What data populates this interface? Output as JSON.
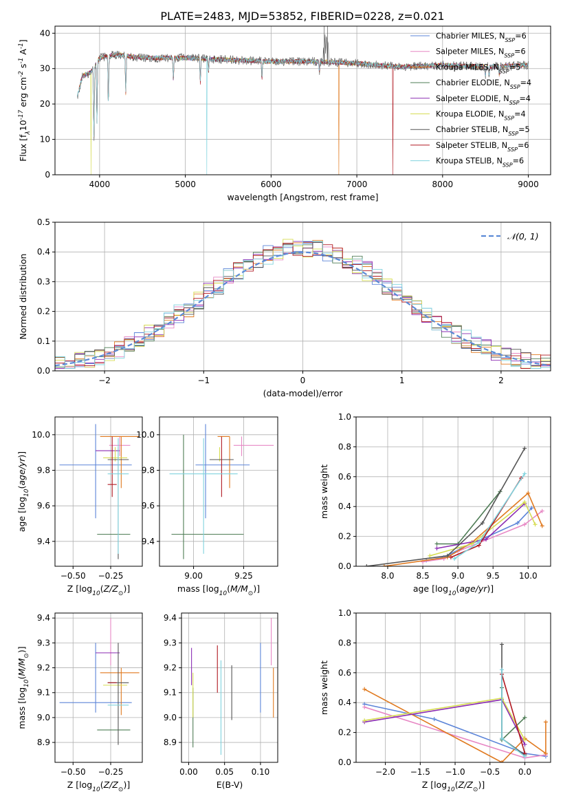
{
  "figure_title": "PLATE=2483, MJD=53852, FIBERID=0228, z=0.021",
  "colors": {
    "Chabrier MILES": "#5b84d8",
    "Salpeter MILES": "#e787c4",
    "Kroupa MILES": "#e0791e",
    "Chabrier ELODIE": "#4e7c55",
    "Salpeter ELODIE": "#8a2bb2",
    "Kroupa ELODIE": "#d6dc52",
    "Chabrier STELIB": "#555555",
    "Salpeter STELIB": "#b01820",
    "Kroupa STELIB": "#7fd3de"
  },
  "chart_data": [
    {
      "id": "spectrum",
      "type": "line",
      "xlabel": "wavelength [Angstrom, rest frame]",
      "ylabel": "Flux [f$_\\lambda$10$^{-17}$ erg cm$^{-2}$ s$^{-1}$ A$^{-1}$]",
      "xlim": [
        3480,
        9260
      ],
      "ylim": [
        0,
        42
      ],
      "xticks": [
        4000,
        5000,
        6000,
        7000,
        8000,
        9000
      ],
      "yticks": [
        0,
        10,
        20,
        30,
        40
      ],
      "legend_position": "top-right",
      "legend": [
        {
          "name": "Chabrier MILES",
          "n": "6"
        },
        {
          "name": "Salpeter MILES",
          "n": "6"
        },
        {
          "name": "Kroupa MILES",
          "n": "5"
        },
        {
          "name": "Chabrier ELODIE",
          "n": "4"
        },
        {
          "name": "Salpeter ELODIE",
          "n": "4"
        },
        {
          "name": "Kroupa ELODIE",
          "n": "4"
        },
        {
          "name": "Chabrier STELIB",
          "n": "5"
        },
        {
          "name": "Salpeter STELIB",
          "n": "6"
        },
        {
          "name": "Kroupa STELIB",
          "n": "6"
        }
      ],
      "continuum": [
        [
          3740,
          22
        ],
        [
          3800,
          28
        ],
        [
          3900,
          29
        ],
        [
          4000,
          33
        ],
        [
          4200,
          34
        ],
        [
          4500,
          33
        ],
        [
          5000,
          33
        ],
        [
          5500,
          32.5
        ],
        [
          6000,
          32
        ],
        [
          6500,
          32
        ],
        [
          7000,
          31.5
        ],
        [
          7500,
          30.5
        ],
        [
          8000,
          31
        ],
        [
          8500,
          30.5
        ],
        [
          9000,
          31
        ]
      ],
      "absorption_lines": [
        [
          3934,
          10
        ],
        [
          3969,
          14
        ],
        [
          4102,
          20
        ],
        [
          4305,
          23
        ],
        [
          4861,
          27
        ],
        [
          5175,
          26
        ],
        [
          5270,
          29
        ],
        [
          5893,
          27
        ],
        [
          6563,
          29
        ],
        [
          8498,
          28
        ],
        [
          8542,
          28
        ],
        [
          8662,
          28
        ]
      ],
      "emission_spikes": [
        [
          6620,
          42
        ],
        [
          6660,
          42
        ]
      ],
      "edge_drops": [
        {
          "series": "Kroupa ELODIE",
          "x": 3900,
          "y": 0
        },
        {
          "series": "Kroupa STELIB",
          "x": 5250,
          "y": 0
        },
        {
          "series": "Kroupa MILES",
          "x": 6790,
          "y": 0
        },
        {
          "series": "Salpeter STELIB",
          "x": 7420,
          "y": 0
        }
      ]
    },
    {
      "id": "residuals",
      "type": "bar",
      "xlabel": "(data-model)/error",
      "ylabel": "Normed distribution",
      "xlim": [
        -2.5,
        2.5
      ],
      "ylim": [
        0,
        0.5
      ],
      "xticks": [
        -2,
        -1,
        0,
        1,
        2
      ],
      "yticks": [
        0.0,
        0.1,
        0.2,
        0.3,
        0.4,
        0.5
      ],
      "legend_position": "top-right",
      "normal_label": "$\\mathcal{N}(0, 1)$",
      "bin_width": 0.1,
      "bin_start": -2.5,
      "series_order": [
        "Chabrier MILES",
        "Salpeter MILES",
        "Kroupa MILES",
        "Chabrier ELODIE",
        "Salpeter ELODIE",
        "Kroupa ELODIE",
        "Chabrier STELIB",
        "Salpeter STELIB",
        "Kroupa STELIB"
      ]
    },
    {
      "id": "age_vs_Z",
      "type": "scatter",
      "xlabel": "Z [log$_{10}$($Z/Z_\\odot$)]",
      "ylabel": "age  [log$_{10}$($age/yr$)]",
      "xlim": [
        -0.62,
        -0.04
      ],
      "ylim": [
        9.26,
        10.1
      ],
      "xticks": [
        -0.5,
        -0.25
      ],
      "yticks": [
        9.4,
        9.6,
        9.8,
        10.0
      ],
      "points": [
        {
          "s": "Chabrier MILES",
          "x": -0.35,
          "xerr": [
            0.24,
            0.24
          ],
          "y": 9.83,
          "yerr": [
            0.3,
            0.23
          ]
        },
        {
          "s": "Salpeter MILES",
          "x": -0.19,
          "xerr": [
            0.07,
            0.07
          ],
          "y": 9.94,
          "yerr": [
            0.06,
            0.05
          ]
        },
        {
          "s": "Kroupa MILES",
          "x": -0.18,
          "xerr": [
            0.14,
            0.12
          ],
          "y": 9.99,
          "yerr": [
            0.29,
            0.0
          ]
        },
        {
          "s": "Chabrier ELODIE",
          "x": -0.23,
          "xerr": [
            0.11,
            0.11
          ],
          "y": 9.44,
          "yerr": [
            0.0,
            0.0
          ]
        },
        {
          "s": "Salpeter ELODIE",
          "x": -0.27,
          "xerr": [
            0.08,
            0.08
          ],
          "y": 9.91,
          "yerr": [
            0.0,
            0.0
          ]
        },
        {
          "s": "Kroupa ELODIE",
          "x": -0.22,
          "xerr": [
            0.08,
            0.08
          ],
          "y": 9.87,
          "yerr": [
            0.02,
            0.06
          ]
        },
        {
          "s": "Chabrier STELIB",
          "x": -0.2,
          "xerr": [
            0.07,
            0.07
          ],
          "y": 9.86,
          "yerr": [
            0.56,
            0.07
          ]
        },
        {
          "s": "Salpeter STELIB",
          "x": -0.24,
          "xerr": [
            0.03,
            0.03
          ],
          "y": 9.72,
          "yerr": [
            0.07,
            0.27
          ]
        },
        {
          "s": "Kroupa STELIB",
          "x": -0.2,
          "xerr": [
            0.07,
            0.07
          ],
          "y": 9.78,
          "yerr": [
            0.45,
            0.2
          ]
        }
      ]
    },
    {
      "id": "age_vs_mass",
      "type": "scatter",
      "xlabel": "mass [log$_{10}$($M/M_\\odot$)]",
      "ylabel": "",
      "xlim": [
        8.83,
        9.42
      ],
      "ylim": [
        9.26,
        10.1
      ],
      "xticks": [
        9.0,
        9.25
      ],
      "yticks": [
        9.4,
        9.6,
        9.8,
        10.0
      ],
      "points": [
        {
          "s": "Chabrier MILES",
          "x": 9.06,
          "xerr": [
            0.05,
            0.22
          ],
          "y": 9.83,
          "yerr": [
            0.3,
            0.23
          ]
        },
        {
          "s": "Salpeter MILES",
          "x": 9.24,
          "xerr": [
            0.04,
            0.16
          ],
          "y": 9.94,
          "yerr": [
            0.06,
            0.05
          ]
        },
        {
          "s": "Kroupa MILES",
          "x": 9.18,
          "xerr": [
            0.06,
            0.0
          ],
          "y": 9.99,
          "yerr": [
            0.29,
            0.0
          ]
        },
        {
          "s": "Chabrier ELODIE",
          "x": 8.95,
          "xerr": [
            0.06,
            0.3
          ],
          "y": 9.44,
          "yerr": [
            0.14,
            0.56
          ]
        },
        {
          "s": "Salpeter ELODIE",
          "x": 9.26,
          "xerr": [
            0.0,
            0.0
          ],
          "y": 9.91,
          "yerr": [
            0.0,
            0.0
          ]
        },
        {
          "s": "Kroupa ELODIE",
          "x": 9.13,
          "xerr": [
            0.0,
            0.0
          ],
          "y": 9.87,
          "yerr": [
            0.02,
            0.06
          ]
        },
        {
          "s": "Chabrier STELIB",
          "x": 9.14,
          "xerr": [
            0.06,
            0.06
          ],
          "y": 9.86,
          "yerr": [
            0.0,
            0.0
          ]
        },
        {
          "s": "Salpeter STELIB",
          "x": 9.14,
          "xerr": [
            0.0,
            0.0
          ],
          "y": 9.72,
          "yerr": [
            0.07,
            0.27
          ]
        },
        {
          "s": "Kroupa STELIB",
          "x": 9.05,
          "xerr": [
            0.17,
            0.17
          ],
          "y": 9.78,
          "yerr": [
            0.45,
            0.2
          ]
        }
      ]
    },
    {
      "id": "weight_vs_age",
      "type": "line",
      "xlabel": "age  [log$_{10}$($age/yr$)]",
      "ylabel": "mass weight",
      "xlim": [
        7.55,
        10.32
      ],
      "ylim": [
        0,
        1.0
      ],
      "xticks": [
        8.0,
        8.5,
        9.0,
        9.5,
        10.0
      ],
      "yticks": [
        0.0,
        0.2,
        0.4,
        0.6,
        0.8,
        1.0
      ],
      "series": [
        {
          "name": "Chabrier MILES",
          "x": [
            8.55,
            8.8,
            9.05,
            9.85,
            10.05
          ],
          "y": [
            0.04,
            0.06,
            0.12,
            0.29,
            0.39
          ]
        },
        {
          "name": "Salpeter MILES",
          "x": [
            8.5,
            8.8,
            9.0,
            9.95,
            10.2
          ],
          "y": [
            0.03,
            0.05,
            0.1,
            0.28,
            0.37
          ]
        },
        {
          "name": "Kroupa MILES",
          "x": [
            7.95,
            8.85,
            9.2,
            10.0,
            10.2
          ],
          "y": [
            0.0,
            0.06,
            0.16,
            0.49,
            0.27
          ]
        },
        {
          "name": "Chabrier ELODIE",
          "x": [
            8.7,
            9.0,
            9.6
          ],
          "y": [
            0.15,
            0.15,
            0.5
          ]
        },
        {
          "name": "Salpeter ELODIE",
          "x": [
            8.7,
            9.4,
            9.95
          ],
          "y": [
            0.12,
            0.18,
            0.42
          ]
        },
        {
          "name": "Kroupa ELODIE",
          "x": [
            8.6,
            9.2,
            9.95,
            10.1
          ],
          "y": [
            0.07,
            0.15,
            0.43,
            0.28
          ]
        },
        {
          "name": "Chabrier STELIB",
          "x": [
            7.7,
            8.85,
            9.35,
            9.95
          ],
          "y": [
            0.0,
            0.07,
            0.29,
            0.79
          ]
        },
        {
          "name": "Salpeter STELIB",
          "x": [
            8.9,
            9.3,
            9.9
          ],
          "y": [
            0.06,
            0.14,
            0.59
          ]
        },
        {
          "name": "Kroupa STELIB",
          "x": [
            8.95,
            9.3,
            9.95
          ],
          "y": [
            0.05,
            0.16,
            0.62
          ]
        }
      ]
    },
    {
      "id": "mass_vs_Z",
      "type": "scatter",
      "xlabel": "Z [log$_{10}$($Z/Z_\\odot$)]",
      "ylabel": "mass [log$_{10}$($M/M_\\odot$)]",
      "xlim": [
        -0.62,
        -0.04
      ],
      "ylim": [
        8.82,
        9.42
      ],
      "xticks": [
        -0.5,
        -0.25
      ],
      "yticks": [
        8.9,
        9.0,
        9.1,
        9.2,
        9.3,
        9.4
      ],
      "points": [
        {
          "s": "Chabrier MILES",
          "x": -0.35,
          "xerr": [
            0.24,
            0.24
          ],
          "y": 9.06,
          "yerr": [
            0.04,
            0.24
          ]
        },
        {
          "s": "Salpeter MILES",
          "x": -0.25,
          "xerr": [
            0.0,
            0.0
          ],
          "y": 9.24,
          "yerr": [
            0.03,
            0.16
          ]
        },
        {
          "s": "Kroupa MILES",
          "x": -0.18,
          "xerr": [
            0.14,
            0.12
          ],
          "y": 9.18,
          "yerr": [
            0.17,
            0.02
          ]
        },
        {
          "s": "Chabrier ELODIE",
          "x": -0.23,
          "xerr": [
            0.11,
            0.11
          ],
          "y": 8.95,
          "yerr": [
            0.0,
            0.0
          ]
        },
        {
          "s": "Salpeter ELODIE",
          "x": -0.27,
          "xerr": [
            0.08,
            0.08
          ],
          "y": 9.26,
          "yerr": [
            0.0,
            0.0
          ]
        },
        {
          "s": "Kroupa ELODIE",
          "x": -0.22,
          "xerr": [
            0.08,
            0.08
          ],
          "y": 9.13,
          "yerr": [
            0.0,
            0.0
          ]
        },
        {
          "s": "Chabrier STELIB",
          "x": -0.2,
          "xerr": [
            0.07,
            0.07
          ],
          "y": 9.14,
          "yerr": [
            0.25,
            0.16
          ]
        },
        {
          "s": "Salpeter STELIB",
          "x": -0.24,
          "xerr": [
            0.03,
            0.03
          ],
          "y": 9.14,
          "yerr": [
            0.0,
            0.0
          ]
        },
        {
          "s": "Kroupa STELIB",
          "x": -0.2,
          "xerr": [
            0.07,
            0.07
          ],
          "y": 9.05,
          "yerr": [
            0.0,
            0.0
          ]
        }
      ]
    },
    {
      "id": "mass_vs_ebv",
      "type": "scatter",
      "xlabel": "E(B-V)",
      "ylabel": "",
      "xlim": [
        -0.01,
        0.124
      ],
      "ylim": [
        8.82,
        9.42
      ],
      "xticks": [
        0.0,
        0.05,
        0.1
      ],
      "yticks": [
        8.9,
        9.0,
        9.1,
        9.2,
        9.3,
        9.4
      ],
      "points": [
        {
          "s": "Chabrier MILES",
          "x": 0.1,
          "xerr": [
            0.0,
            0.0
          ],
          "y": 9.06,
          "yerr": [
            0.04,
            0.24
          ]
        },
        {
          "s": "Salpeter MILES",
          "x": 0.115,
          "xerr": [
            0.0,
            0.0
          ],
          "y": 9.24,
          "yerr": [
            0.03,
            0.16
          ]
        },
        {
          "s": "Kroupa MILES",
          "x": 0.118,
          "xerr": [
            0.0,
            0.0
          ],
          "y": 9.1,
          "yerr": [
            0.1,
            0.1
          ]
        },
        {
          "s": "Chabrier ELODIE",
          "x": 0.006,
          "xerr": [
            0.0,
            0.0
          ],
          "y": 9.0,
          "yerr": [
            0.12,
            0.12
          ]
        },
        {
          "s": "Salpeter ELODIE",
          "x": 0.004,
          "xerr": [
            0.0,
            0.0
          ],
          "y": 9.21,
          "yerr": [
            0.08,
            0.07
          ]
        },
        {
          "s": "Kroupa ELODIE",
          "x": 0.006,
          "xerr": [
            0.0,
            0.0
          ],
          "y": 9.06,
          "yerr": [
            0.06,
            0.12
          ]
        },
        {
          "s": "Chabrier STELIB",
          "x": 0.06,
          "xerr": [
            0.0,
            0.0
          ],
          "y": 9.1,
          "yerr": [
            0.11,
            0.11
          ]
        },
        {
          "s": "Salpeter STELIB",
          "x": 0.04,
          "xerr": [
            0.0,
            0.0
          ],
          "y": 9.19,
          "yerr": [
            0.09,
            0.1
          ]
        },
        {
          "s": "Kroupa STELIB",
          "x": 0.045,
          "xerr": [
            0.0,
            0.0
          ],
          "y": 9.04,
          "yerr": [
            0.19,
            0.19
          ]
        }
      ]
    },
    {
      "id": "weight_vs_Z",
      "type": "line",
      "xlabel": "Z [log$_{10}$($Z/Z_\\odot$)]",
      "ylabel": "mass weight",
      "xlim": [
        -2.42,
        0.37
      ],
      "ylim": [
        0,
        1.0
      ],
      "xticks": [
        -2.0,
        -1.5,
        -1.0,
        -0.5,
        0.0
      ],
      "yticks": [
        0.0,
        0.2,
        0.4,
        0.6,
        0.8,
        1.0
      ],
      "series": [
        {
          "name": "Chabrier MILES",
          "x": [
            -2.3,
            -1.3,
            0.0,
            0.3
          ],
          "y": [
            0.39,
            0.29,
            0.06,
            0.04
          ]
        },
        {
          "name": "Salpeter MILES",
          "x": [
            -2.3,
            0.0,
            0.3
          ],
          "y": [
            0.37,
            0.03,
            0.05
          ]
        },
        {
          "name": "Kroupa MILES",
          "x": [
            -2.3,
            -0.33,
            0.0,
            0.3,
            0.3
          ],
          "y": [
            0.49,
            0.0,
            0.16,
            0.06,
            0.27
          ]
        },
        {
          "name": "Chabrier ELODIE",
          "x": [
            -0.33,
            -0.33,
            0.0
          ],
          "y": [
            0.5,
            0.15,
            0.3
          ]
        },
        {
          "name": "Salpeter ELODIE",
          "x": [
            -2.3,
            -0.33,
            0.0
          ],
          "y": [
            0.27,
            0.42,
            0.12
          ]
        },
        {
          "name": "Kroupa ELODIE",
          "x": [
            -2.3,
            -0.33,
            0.0
          ],
          "y": [
            0.28,
            0.43,
            0.15
          ]
        },
        {
          "name": "Chabrier STELIB",
          "x": [
            -0.33,
            -0.33,
            0.0
          ],
          "y": [
            0.79,
            0.16,
            0.05
          ]
        },
        {
          "name": "Salpeter STELIB",
          "x": [
            -0.33,
            0.0
          ],
          "y": [
            0.59,
            0.06
          ]
        },
        {
          "name": "Kroupa STELIB",
          "x": [
            -0.33,
            -0.33,
            0.0
          ],
          "y": [
            0.62,
            0.16,
            0.04
          ]
        }
      ]
    }
  ]
}
